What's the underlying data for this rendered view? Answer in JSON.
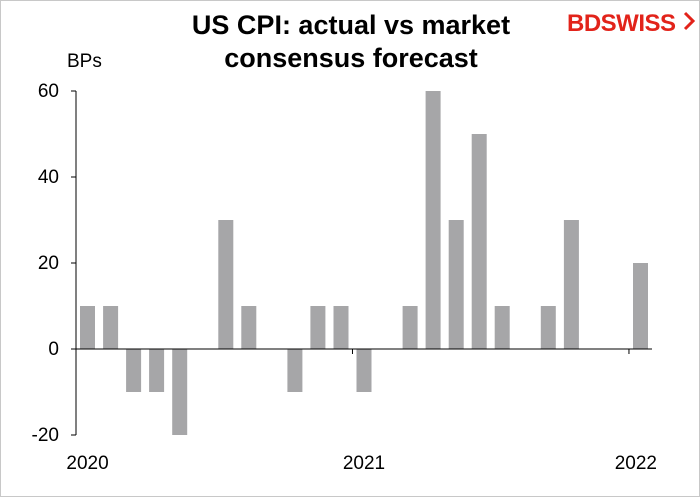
{
  "brand": {
    "logo_text": "BDSWISS",
    "accent_color": "#e2231a"
  },
  "chart_data": {
    "type": "bar",
    "title": "US CPI: actual vs market consensus forecast",
    "ylabel": "BPs",
    "xlabel": "",
    "ylim": [
      -20,
      60
    ],
    "yticks": [
      "-20",
      "0",
      "20",
      "40",
      "60"
    ],
    "x_tick_labels": [
      "2020",
      "2021",
      "2022"
    ],
    "grid": false,
    "bar_color": "#a6a6a8",
    "x": [
      "2020-01",
      "2020-02",
      "2020-03",
      "2020-04",
      "2020-05",
      "2020-06",
      "2020-07",
      "2020-08",
      "2020-09",
      "2020-10",
      "2020-11",
      "2020-12",
      "2021-01",
      "2021-02",
      "2021-03",
      "2021-04",
      "2021-05",
      "2021-06",
      "2021-07",
      "2021-08",
      "2021-09",
      "2021-10",
      "2021-11",
      "2021-12",
      "2022-01"
    ],
    "values": [
      10,
      10,
      -10,
      -10,
      -20,
      0,
      30,
      10,
      0,
      -10,
      10,
      10,
      -10,
      0,
      10,
      60,
      30,
      50,
      10,
      0,
      10,
      30,
      0,
      0,
      20
    ]
  }
}
